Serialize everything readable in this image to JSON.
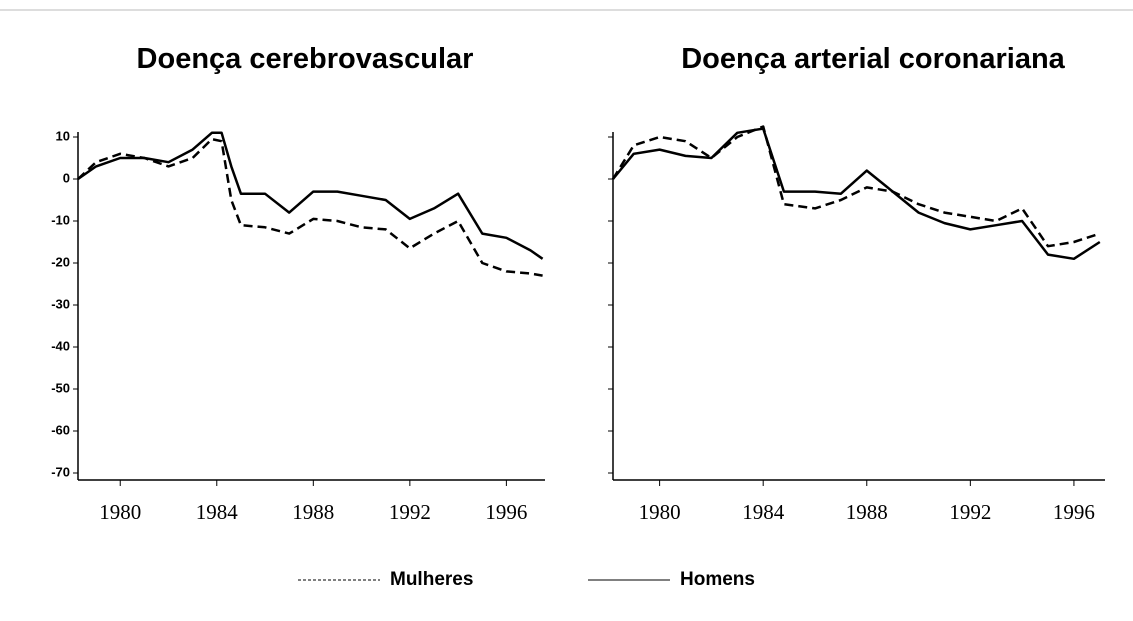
{
  "chart_data": [
    {
      "type": "line",
      "title": "Doença cerebrovascular",
      "x": [
        1978.25,
        1979,
        1980,
        1981,
        1982,
        1983,
        1983.8,
        1984.2,
        1984.6,
        1985,
        1986,
        1987,
        1988,
        1989,
        1990,
        1991,
        1992,
        1993,
        1994,
        1995,
        1996,
        1997,
        1997.5
      ],
      "series": [
        {
          "name": "Mulheres",
          "color": "#000000",
          "dash": true,
          "values": [
            0,
            4,
            6,
            5,
            3,
            5,
            9.5,
            9,
            -5,
            -11,
            -11.5,
            -13,
            -9.5,
            -10,
            -11.5,
            -12,
            -16.5,
            -13,
            -10,
            -20,
            -22,
            -22.5,
            -23
          ]
        },
        {
          "name": "Homens",
          "color": "#000000",
          "dash": false,
          "values": [
            0,
            3,
            5,
            5,
            4,
            7,
            11,
            11,
            3,
            -3.5,
            -3.5,
            -8,
            -3,
            -3,
            -4,
            -5,
            -9.5,
            -7,
            -3.5,
            -13,
            -14,
            -17,
            -19
          ]
        }
      ],
      "xlim": [
        1978.25,
        1997.6
      ],
      "xticks": [
        1980,
        1984,
        1988,
        1992,
        1996
      ],
      "ylim": [
        -70,
        10
      ],
      "yticks": [
        -70,
        -60,
        -50,
        -40,
        -30,
        -20,
        -10,
        0,
        10
      ],
      "ytick_labels": true
    },
    {
      "type": "line",
      "title": "Doença arterial coronariana",
      "x": [
        1978.2,
        1979,
        1980,
        1981,
        1982,
        1983,
        1984,
        1984.8,
        1986,
        1987,
        1988,
        1989,
        1990,
        1991,
        1992,
        1993,
        1994,
        1995,
        1996,
        1997
      ],
      "series": [
        {
          "name": "Mulheres",
          "color": "#000000",
          "dash": true,
          "values": [
            0,
            8,
            10,
            9,
            5,
            10,
            12.5,
            -6,
            -7,
            -5,
            -2,
            -3,
            -6,
            -8,
            -9,
            -10,
            -7,
            -16,
            -15,
            -13
          ]
        },
        {
          "name": "Homens",
          "color": "#000000",
          "dash": false,
          "values": [
            0,
            6,
            7,
            5.5,
            5,
            11,
            12,
            -3,
            -3,
            -3.5,
            2,
            -3,
            -8,
            -10.5,
            -12,
            -11,
            -10,
            -18,
            -19,
            -15
          ]
        }
      ],
      "xlim": [
        1978.2,
        1997.2
      ],
      "xticks": [
        1980,
        1984,
        1988,
        1992,
        1996
      ],
      "ylim": [
        -70,
        10
      ],
      "yticks": [
        -70,
        -60,
        -50,
        -40,
        -30,
        -20,
        -10,
        0,
        10
      ],
      "ytick_labels": false
    }
  ]
}
